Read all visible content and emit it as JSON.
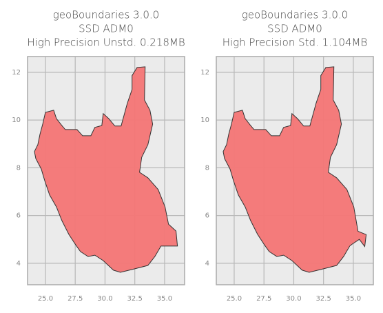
{
  "chart_data": [
    {
      "type": "map",
      "title": [
        "geoBoundaries 3.0.0",
        "SSD ADM0",
        "High Precision Unstd. 0.218MB"
      ],
      "x": [
        32.69,
        33.37,
        33.31,
        33.77,
        34.0,
        33.6,
        33.08,
        32.9,
        33.6,
        34.46,
        35.04,
        35.33,
        35.96,
        36.08,
        34.7,
        34.18,
        33.6,
        32.44,
        31.29,
        30.71,
        29.85,
        29.15,
        28.58,
        27.94,
        27.54,
        26.96,
        26.38,
        25.92,
        25.35,
        24.94,
        24.65,
        24.19,
        24.08,
        24.36,
        24.54,
        24.77,
        25.0,
        25.69,
        25.92,
        26.38,
        26.67,
        27.65,
        28.12,
        28.81,
        29.15,
        29.73,
        29.85,
        30.31,
        30.83,
        31.35,
        31.87,
        32.27,
        32.27
      ],
      "y": [
        12.2,
        12.23,
        10.84,
        10.41,
        9.83,
        8.97,
        8.44,
        7.81,
        7.58,
        7.09,
        6.36,
        5.64,
        5.35,
        4.72,
        4.72,
        4.28,
        3.91,
        3.76,
        3.62,
        3.71,
        4.11,
        4.34,
        4.28,
        4.49,
        4.77,
        5.21,
        5.79,
        6.36,
        6.86,
        7.46,
        7.95,
        8.39,
        8.68,
        8.97,
        9.4,
        9.83,
        10.32,
        10.41,
        10.06,
        9.77,
        9.6,
        9.6,
        9.34,
        9.34,
        9.69,
        9.77,
        10.27,
        10.06,
        9.75,
        9.75,
        10.7,
        11.28,
        11.86
      ],
      "color": "#f47575",
      "edge_color": "#333333",
      "xlim": [
        23.5,
        36.68
      ],
      "ylim": [
        3.1,
        12.66
      ],
      "xticks": [
        {
          "value": 25,
          "label": "25.0"
        },
        27.5,
        {
          "value": 30,
          "label": "30.0"
        },
        32.5,
        {
          "value": 35,
          "label": "35.0"
        }
      ],
      "yticks": [
        4,
        6,
        8,
        10,
        12
      ],
      "grid": true
    },
    {
      "type": "map",
      "title": [
        "geoBoundaries 3.0.0",
        "SSD ADM0",
        "High Precision Std. 1.104MB"
      ],
      "x": [
        32.69,
        33.37,
        33.31,
        33.77,
        34.0,
        33.6,
        33.08,
        32.9,
        33.6,
        34.46,
        35.04,
        35.39,
        36.08,
        35.96,
        35.5,
        34.9,
        34.7,
        34.18,
        33.6,
        32.44,
        31.29,
        30.71,
        29.85,
        29.15,
        28.58,
        27.94,
        27.54,
        26.96,
        26.38,
        25.92,
        25.35,
        24.94,
        24.65,
        24.19,
        24.08,
        24.36,
        24.54,
        24.77,
        25.0,
        25.69,
        25.92,
        26.38,
        26.67,
        27.65,
        28.12,
        28.81,
        29.15,
        29.73,
        29.85,
        30.31,
        30.83,
        31.35,
        31.87,
        32.27,
        32.27
      ],
      "y": [
        12.2,
        12.23,
        10.84,
        10.41,
        9.83,
        8.97,
        8.44,
        7.81,
        7.58,
        7.09,
        6.36,
        5.34,
        5.2,
        4.7,
        5.0,
        4.8,
        4.72,
        4.28,
        3.91,
        3.76,
        3.62,
        3.71,
        4.11,
        4.34,
        4.28,
        4.49,
        4.77,
        5.21,
        5.79,
        6.36,
        6.86,
        7.46,
        7.95,
        8.39,
        8.68,
        8.97,
        9.4,
        9.83,
        10.32,
        10.41,
        10.06,
        9.77,
        9.6,
        9.6,
        9.34,
        9.34,
        9.69,
        9.77,
        10.27,
        10.06,
        9.75,
        9.75,
        10.7,
        11.28,
        11.86
      ],
      "color": "#f47575",
      "edge_color": "#333333",
      "xlim": [
        23.5,
        36.68
      ],
      "ylim": [
        3.1,
        12.66
      ],
      "xticks": [
        {
          "value": 25,
          "label": "25.0"
        },
        27.5,
        {
          "value": 30,
          "label": "30.0"
        },
        32.5,
        {
          "value": 35,
          "label": "35.0"
        }
      ],
      "yticks": [
        4,
        6,
        8,
        10,
        12
      ],
      "grid": true
    }
  ]
}
